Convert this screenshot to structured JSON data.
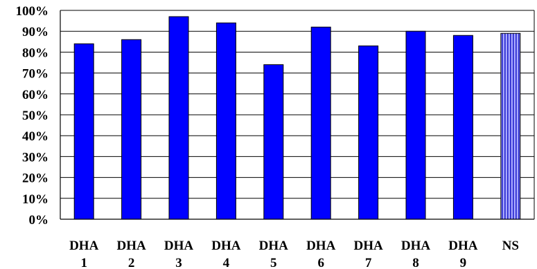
{
  "chart_data": {
    "type": "bar",
    "categories": [
      [
        "DHA",
        "1"
      ],
      [
        "DHA",
        "2"
      ],
      [
        "DHA",
        "3"
      ],
      [
        "DHA",
        "4"
      ],
      [
        "DHA",
        "5"
      ],
      [
        "DHA",
        "6"
      ],
      [
        "DHA",
        "7"
      ],
      [
        "DHA",
        "8"
      ],
      [
        "DHA",
        "9"
      ],
      [
        "NS"
      ]
    ],
    "values": [
      84,
      86,
      97,
      94,
      74,
      92,
      83,
      90,
      88,
      89
    ],
    "ylim": [
      0,
      100
    ],
    "yticks": [
      "0%",
      "10%",
      "20%",
      "30%",
      "40%",
      "50%",
      "60%",
      "70%",
      "80%",
      "90%",
      "100%"
    ],
    "grid": true,
    "legend": "none",
    "colors": {
      "bar": "#0000ff",
      "highlight_bar": "#aaaaff",
      "highlight_stripe": "#2222cc",
      "grid": "#000000"
    },
    "highlight_index": 9
  }
}
